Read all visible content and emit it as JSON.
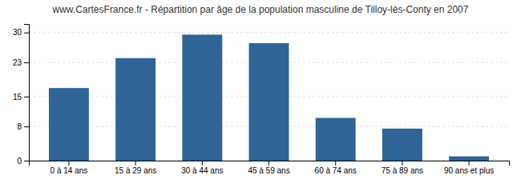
{
  "chart_data": {
    "type": "bar",
    "title": "www.CartesFrance.fr - Répartition par âge de la population masculine de Tilloy-lès-Conty en 2007",
    "categories": [
      "0 à 14 ans",
      "15 à 29 ans",
      "30 à 44 ans",
      "45 à 59 ans",
      "60 à 74 ans",
      "75 à 89 ans",
      "90 ans et plus"
    ],
    "values": [
      17,
      24,
      29.5,
      27.5,
      10,
      7.5,
      1
    ],
    "color": "#2e6496",
    "ylim": [
      0,
      32
    ],
    "yticks": [
      0,
      8,
      15,
      23,
      30
    ],
    "grid": true
  }
}
